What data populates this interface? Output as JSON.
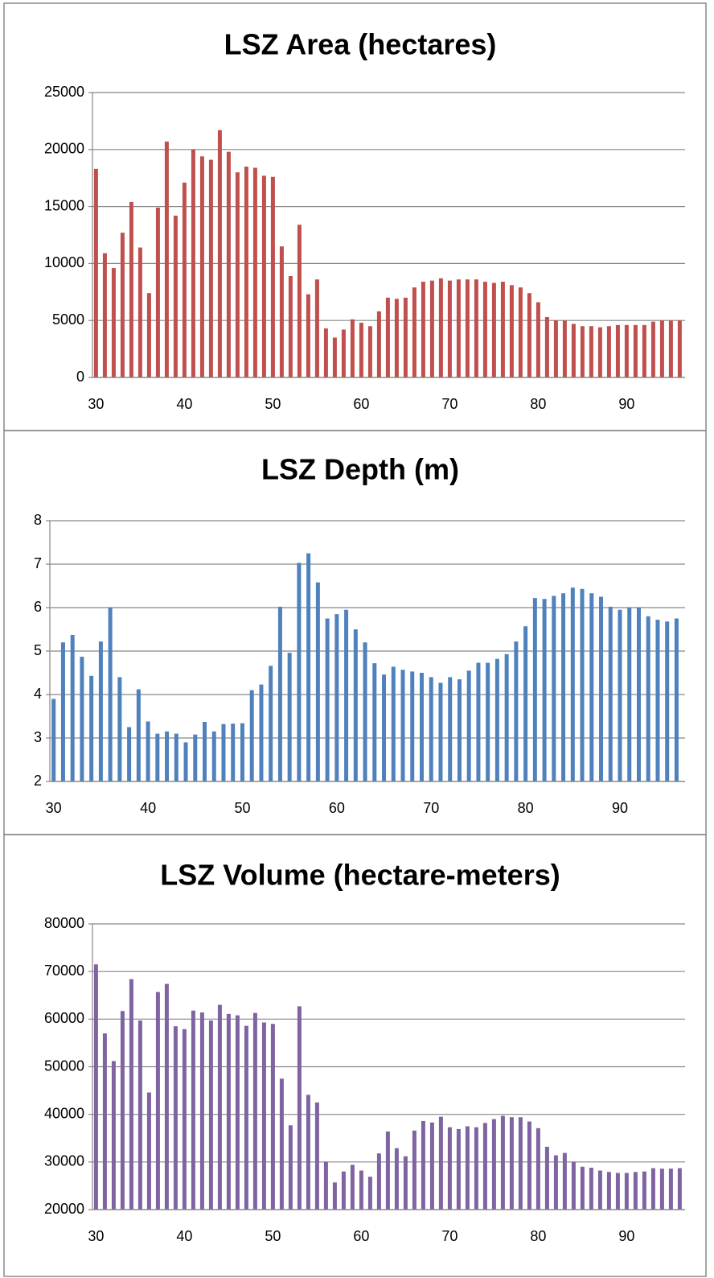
{
  "chart_data": [
    {
      "type": "bar",
      "title": "LSZ Area (hectares)",
      "color": "#c0504d",
      "x": [
        30,
        31,
        32,
        33,
        34,
        35,
        36,
        37,
        38,
        39,
        40,
        41,
        42,
        43,
        44,
        45,
        46,
        47,
        48,
        49,
        50,
        51,
        52,
        53,
        54,
        55,
        56,
        57,
        58,
        59,
        60,
        61,
        62,
        63,
        64,
        65,
        66,
        67,
        68,
        69,
        70,
        71,
        72,
        73,
        74,
        75,
        76,
        77,
        78,
        79,
        80,
        81,
        82,
        83,
        84,
        85,
        86,
        87,
        88,
        89,
        90,
        91,
        92,
        93,
        94,
        95,
        96
      ],
      "values": [
        18300,
        10900,
        9600,
        12700,
        15400,
        11400,
        7400,
        14900,
        20700,
        14200,
        17100,
        20000,
        19400,
        19100,
        21700,
        19800,
        18000,
        18500,
        18400,
        17700,
        17600,
        11500,
        8900,
        13400,
        7300,
        8600,
        4300,
        3500,
        4200,
        5100,
        4800,
        4500,
        5800,
        7000,
        6900,
        7000,
        7900,
        8400,
        8500,
        8700,
        8500,
        8600,
        8600,
        8600,
        8400,
        8300,
        8400,
        8100,
        7900,
        7400,
        6600,
        5300,
        5000,
        5000,
        4700,
        4500,
        4500,
        4400,
        4500,
        4600,
        4600,
        4600,
        4600,
        4900,
        5000,
        5000,
        5000
      ],
      "xlim": [
        29.6,
        96.6
      ],
      "xticks": [
        30,
        40,
        50,
        60,
        70,
        80,
        90
      ],
      "ylim": [
        0,
        25000
      ],
      "yticks": [
        0,
        5000,
        10000,
        15000,
        20000,
        25000
      ],
      "grid": true
    },
    {
      "type": "bar",
      "title": "LSZ  Depth (m)",
      "color": "#4f81bd",
      "x": [
        30,
        31,
        32,
        33,
        34,
        35,
        36,
        37,
        38,
        39,
        40,
        41,
        42,
        43,
        44,
        45,
        46,
        47,
        48,
        49,
        50,
        51,
        52,
        53,
        54,
        55,
        56,
        57,
        58,
        59,
        60,
        61,
        62,
        63,
        64,
        65,
        66,
        67,
        68,
        69,
        70,
        71,
        72,
        73,
        74,
        75,
        76,
        77,
        78,
        79,
        80,
        81,
        82,
        83,
        84,
        85,
        86,
        87,
        88,
        89,
        90,
        91,
        92,
        93,
        94,
        95,
        96
      ],
      "values": [
        3.9,
        5.2,
        5.37,
        4.87,
        4.43,
        5.22,
        6.0,
        4.4,
        3.25,
        4.12,
        3.38,
        3.1,
        3.15,
        3.1,
        2.9,
        3.08,
        3.37,
        3.15,
        3.32,
        3.33,
        3.34,
        4.1,
        4.23,
        4.66,
        6.02,
        4.96,
        7.03,
        7.25,
        6.58,
        5.75,
        5.85,
        5.95,
        5.5,
        5.2,
        4.72,
        4.46,
        4.64,
        4.57,
        4.53,
        4.5,
        4.4,
        4.27,
        4.4,
        4.35,
        4.55,
        4.73,
        4.73,
        4.82,
        4.93,
        5.22,
        5.57,
        6.22,
        6.2,
        6.27,
        6.33,
        6.46,
        6.43,
        6.33,
        6.25,
        6.02,
        5.95,
        6.0,
        6.0,
        5.8,
        5.72,
        5.68,
        5.75
      ],
      "xlim": [
        29.6,
        96.9
      ],
      "xticks": [
        30,
        40,
        50,
        60,
        70,
        80,
        90
      ],
      "ylim": [
        2,
        8
      ],
      "yticks": [
        2,
        3,
        4,
        5,
        6,
        7,
        8
      ],
      "grid": true
    },
    {
      "type": "bar",
      "title": "LSZ Volume (hectare-meters)",
      "color": "#8064a2",
      "x": [
        30,
        31,
        32,
        33,
        34,
        35,
        36,
        37,
        38,
        39,
        40,
        41,
        42,
        43,
        44,
        45,
        46,
        47,
        48,
        49,
        50,
        51,
        52,
        53,
        54,
        55,
        56,
        57,
        58,
        59,
        60,
        61,
        62,
        63,
        64,
        65,
        66,
        67,
        68,
        69,
        70,
        71,
        72,
        73,
        74,
        75,
        76,
        77,
        78,
        79,
        80,
        81,
        82,
        83,
        84,
        85,
        86,
        87,
        88,
        89,
        90,
        91,
        92,
        93,
        94,
        95,
        96
      ],
      "values": [
        71500,
        57000,
        51200,
        61700,
        68400,
        59700,
        44600,
        65700,
        67400,
        58500,
        57900,
        61800,
        61400,
        59700,
        63000,
        61100,
        60800,
        58600,
        61300,
        59300,
        59000,
        47500,
        37700,
        62700,
        44100,
        42500,
        30000,
        25700,
        28000,
        29400,
        28200,
        26900,
        31800,
        36400,
        32900,
        31200,
        36600,
        38600,
        38300,
        39500,
        37300,
        36900,
        37500,
        37300,
        38200,
        39000,
        39700,
        39400,
        39400,
        38500,
        37100,
        33200,
        31400,
        31900,
        30000,
        29000,
        28800,
        28200,
        27900,
        27700,
        27700,
        27900,
        28000,
        28700,
        28600,
        28600,
        28700
      ],
      "xlim": [
        29.6,
        96.6
      ],
      "xticks": [
        30,
        40,
        50,
        60,
        70,
        80,
        90
      ],
      "ylim": [
        20000,
        80000
      ],
      "yticks": [
        20000,
        30000,
        40000,
        50000,
        60000,
        70000,
        80000
      ],
      "grid": true
    }
  ]
}
